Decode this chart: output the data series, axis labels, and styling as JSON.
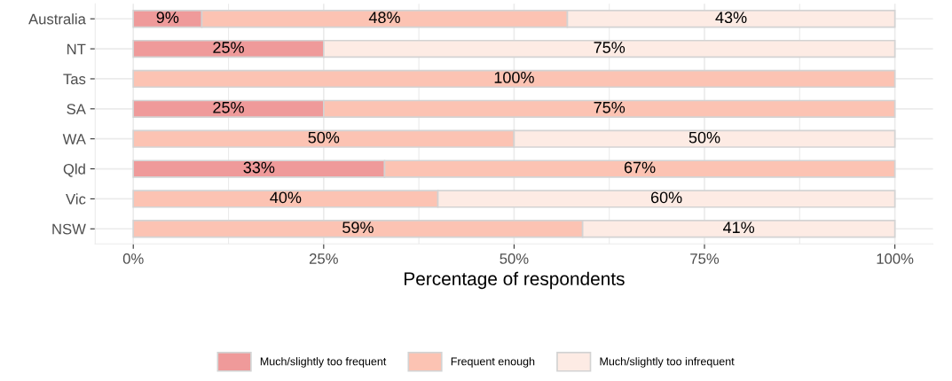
{
  "chart_data": {
    "type": "bar",
    "orientation": "horizontal",
    "stacked": true,
    "categories": [
      "Australia",
      "NT",
      "Tas",
      "SA",
      "WA",
      "Qld",
      "Vic",
      "NSW"
    ],
    "series": [
      {
        "name": "Much/slightly too frequent",
        "color": "#ef9a9a",
        "values": [
          9,
          25,
          0,
          25,
          0,
          33,
          0,
          0
        ],
        "value_labels": [
          "9%",
          "25%",
          null,
          "25%",
          null,
          "33%",
          null,
          null
        ]
      },
      {
        "name": "Frequent enough",
        "color": "#fcc3b3",
        "values": [
          48,
          0,
          100,
          75,
          50,
          67,
          40,
          59
        ],
        "value_labels": [
          "48%",
          null,
          "100%",
          "75%",
          "50%",
          "67%",
          "40%",
          "59%"
        ]
      },
      {
        "name": "Much/slightly too infrequent",
        "color": "#fdebe4",
        "values": [
          43,
          75,
          0,
          0,
          50,
          0,
          60,
          41
        ],
        "value_labels": [
          "43%",
          "75%",
          null,
          null,
          "50%",
          null,
          "60%",
          "41%"
        ]
      }
    ],
    "xlabel": "Percentage of respondents",
    "xlim": [
      -5,
      105
    ],
    "xticks": [
      {
        "value": 0,
        "label": "0%"
      },
      {
        "value": 25,
        "label": "25%"
      },
      {
        "value": 50,
        "label": "50%"
      },
      {
        "value": 75,
        "label": "75%"
      },
      {
        "value": 100,
        "label": "100%"
      }
    ],
    "grid": true,
    "legend": "bottom"
  }
}
